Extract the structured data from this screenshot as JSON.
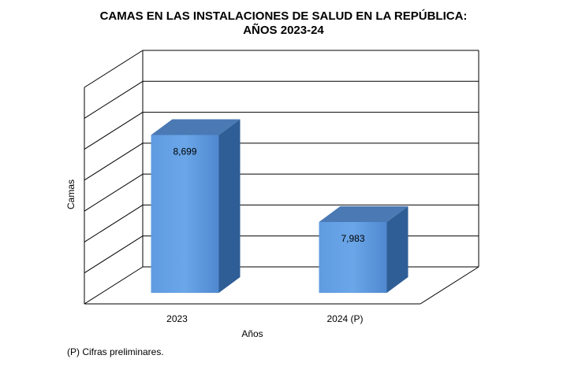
{
  "chart_data": {
    "type": "bar",
    "title_line1": "CAMAS EN LAS INSTALACIONES DE SALUD EN LA REPÚBLICA:",
    "title_line2": "AÑOS 2023-24",
    "categories": [
      "2023",
      "2024 (P)"
    ],
    "values": [
      8699,
      7983
    ],
    "value_labels": [
      "8,699",
      "7,983"
    ],
    "xlabel": "Años",
    "ylabel": "Camas",
    "ylim": [
      7400,
      9000
    ],
    "grid": true,
    "bar_color": "#4f8ed6",
    "grid_color": "#000000"
  },
  "footnote": "(P) Cifras  preliminares."
}
